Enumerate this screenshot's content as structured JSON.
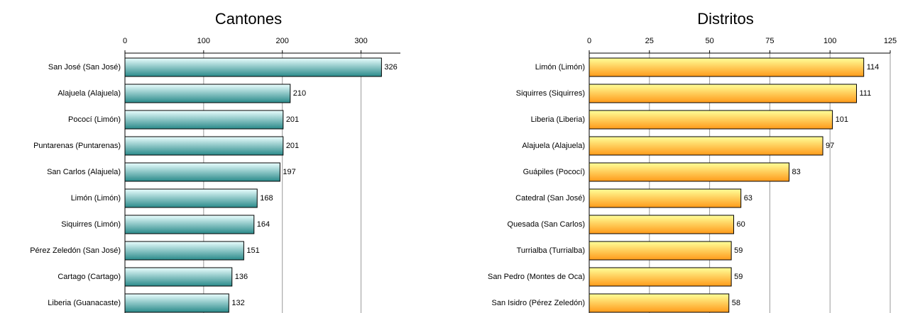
{
  "chart_data": [
    {
      "type": "bar",
      "orientation": "horizontal",
      "title": "Cantones",
      "categories": [
        "San José (San José)",
        "Alajuela (Alajuela)",
        "Pococí (Limón)",
        "Puntarenas (Puntarenas)",
        "San Carlos (Alajuela)",
        "Limón (Limón)",
        "Siquirres (Limón)",
        "Pérez Zeledón (San José)",
        "Cartago (Cartago)",
        "Liberia (Guanacaste)"
      ],
      "values": [
        326,
        210,
        201,
        201,
        197,
        168,
        164,
        151,
        136,
        132
      ],
      "gradient": [
        "#eaffff",
        "#2a8a8a"
      ],
      "xlim": [
        0,
        350
      ],
      "xticks": [
        0,
        100,
        200,
        300
      ],
      "grid": true
    },
    {
      "type": "bar",
      "orientation": "horizontal",
      "title": "Distritos",
      "categories": [
        "Limón (Limón)",
        "Siquirres (Siquirres)",
        "Liberia (Liberia)",
        "Alajuela (Alajuela)",
        "Guápiles (Pococí)",
        "Catedral (San José)",
        "Quesada (San Carlos)",
        "Turrialba (Turrialba)",
        "San Pedro (Montes de Oca)",
        "San Isidro (Pérez Zeledón)"
      ],
      "values": [
        114,
        111,
        101,
        97,
        83,
        63,
        60,
        59,
        59,
        58
      ],
      "gradient": [
        "#ffff99",
        "#ff9a1a"
      ],
      "xlim": [
        0,
        125
      ],
      "xticks": [
        0,
        25,
        50,
        75,
        100,
        125
      ],
      "grid": true
    }
  ]
}
